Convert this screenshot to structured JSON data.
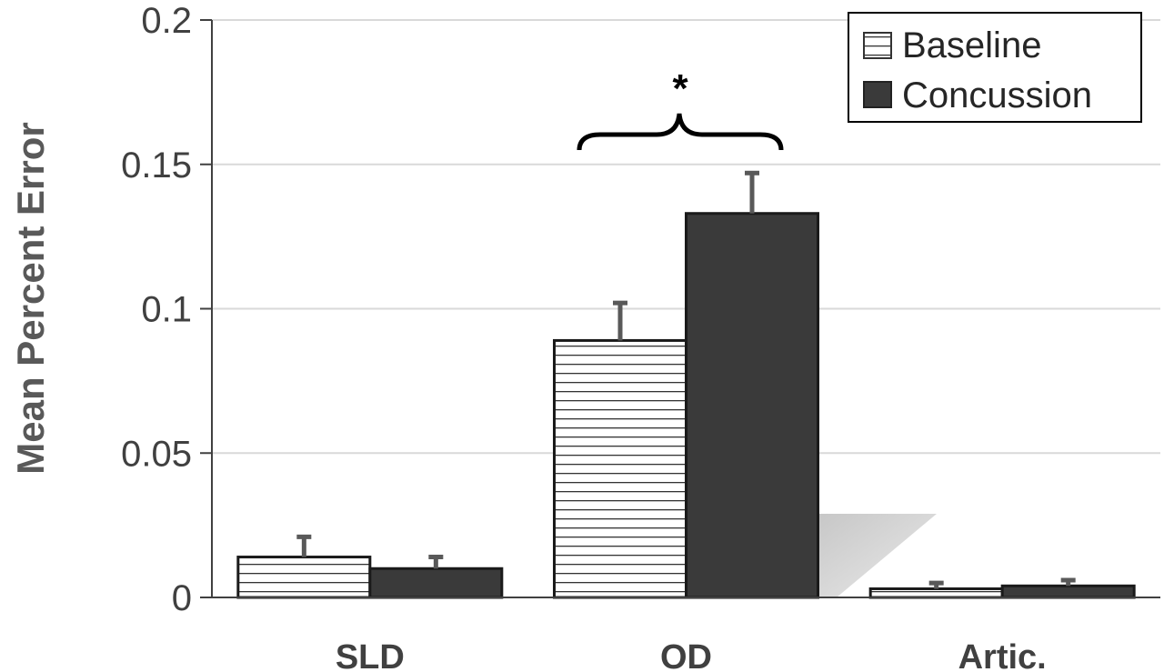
{
  "chart_data": {
    "type": "bar",
    "title": "",
    "xlabel": "",
    "ylabel": "Mean Percent Error",
    "ylim": [
      0,
      0.2
    ],
    "yticks": [
      "0",
      "0.05",
      "0.1",
      "0.15",
      "0.2"
    ],
    "categories": [
      "SLD",
      "OD",
      "Artic."
    ],
    "series": [
      {
        "name": "Baseline",
        "values": [
          0.014,
          0.089,
          0.003
        ],
        "errors": [
          0.007,
          0.013,
          0.002
        ],
        "color": "#ffffff",
        "pattern": "horizontal-stripes"
      },
      {
        "name": "Concussion",
        "values": [
          0.01,
          0.133,
          0.004
        ],
        "errors": [
          0.004,
          0.014,
          0.002
        ],
        "color": "#3a3a3a",
        "pattern": "solid"
      }
    ],
    "grid": true,
    "legend_position": "top-right",
    "annotations": [
      {
        "text": "*",
        "category": "OD"
      }
    ]
  }
}
